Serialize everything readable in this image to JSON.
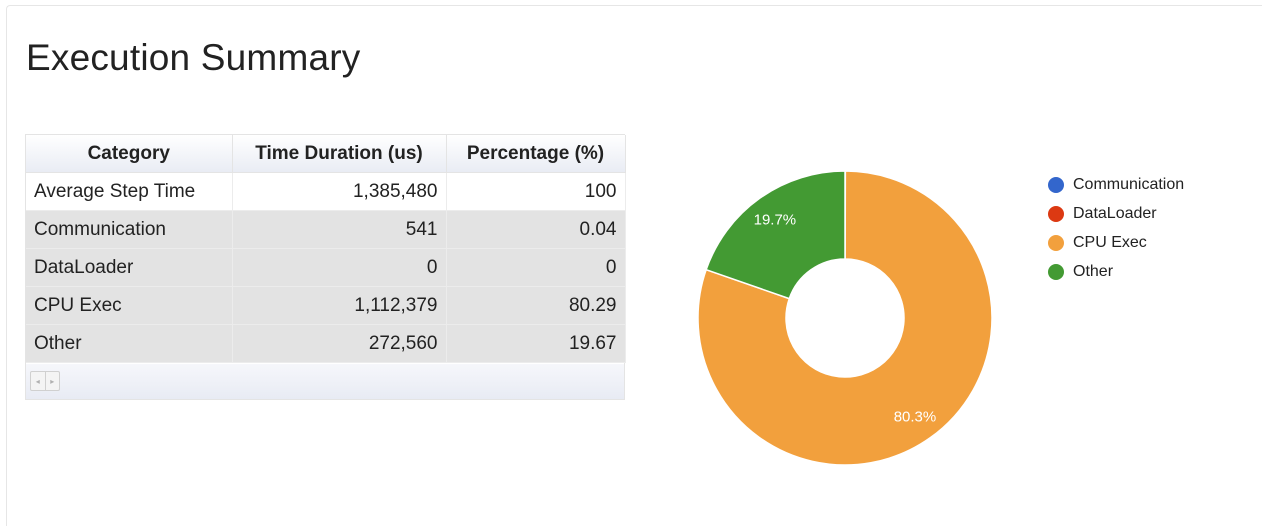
{
  "title": "Execution Summary",
  "table": {
    "headers": [
      "Category",
      "Time Duration (us)",
      "Percentage (%)"
    ],
    "rows": [
      {
        "category": "Average Step Time",
        "duration": "1,385,480",
        "percentage": "100"
      },
      {
        "category": "Communication",
        "duration": "541",
        "percentage": "0.04"
      },
      {
        "category": "DataLoader",
        "duration": "0",
        "percentage": "0"
      },
      {
        "category": "CPU Exec",
        "duration": "1,112,379",
        "percentage": "80.29"
      },
      {
        "category": "Other",
        "duration": "272,560",
        "percentage": "19.67"
      }
    ],
    "scroll_left_glyph": "◂",
    "scroll_right_glyph": "▸"
  },
  "chart_data": {
    "type": "pie",
    "donut": true,
    "labels": [
      "Communication",
      "DataLoader",
      "CPU Exec",
      "Other"
    ],
    "values": [
      0.04,
      0,
      80.29,
      19.67
    ],
    "slice_labels": [
      "",
      "",
      "80.3%",
      "19.7%"
    ],
    "colors": [
      "#3366cc",
      "#dc3912",
      "#f2a03d",
      "#439a33"
    ],
    "legend_position": "right"
  }
}
